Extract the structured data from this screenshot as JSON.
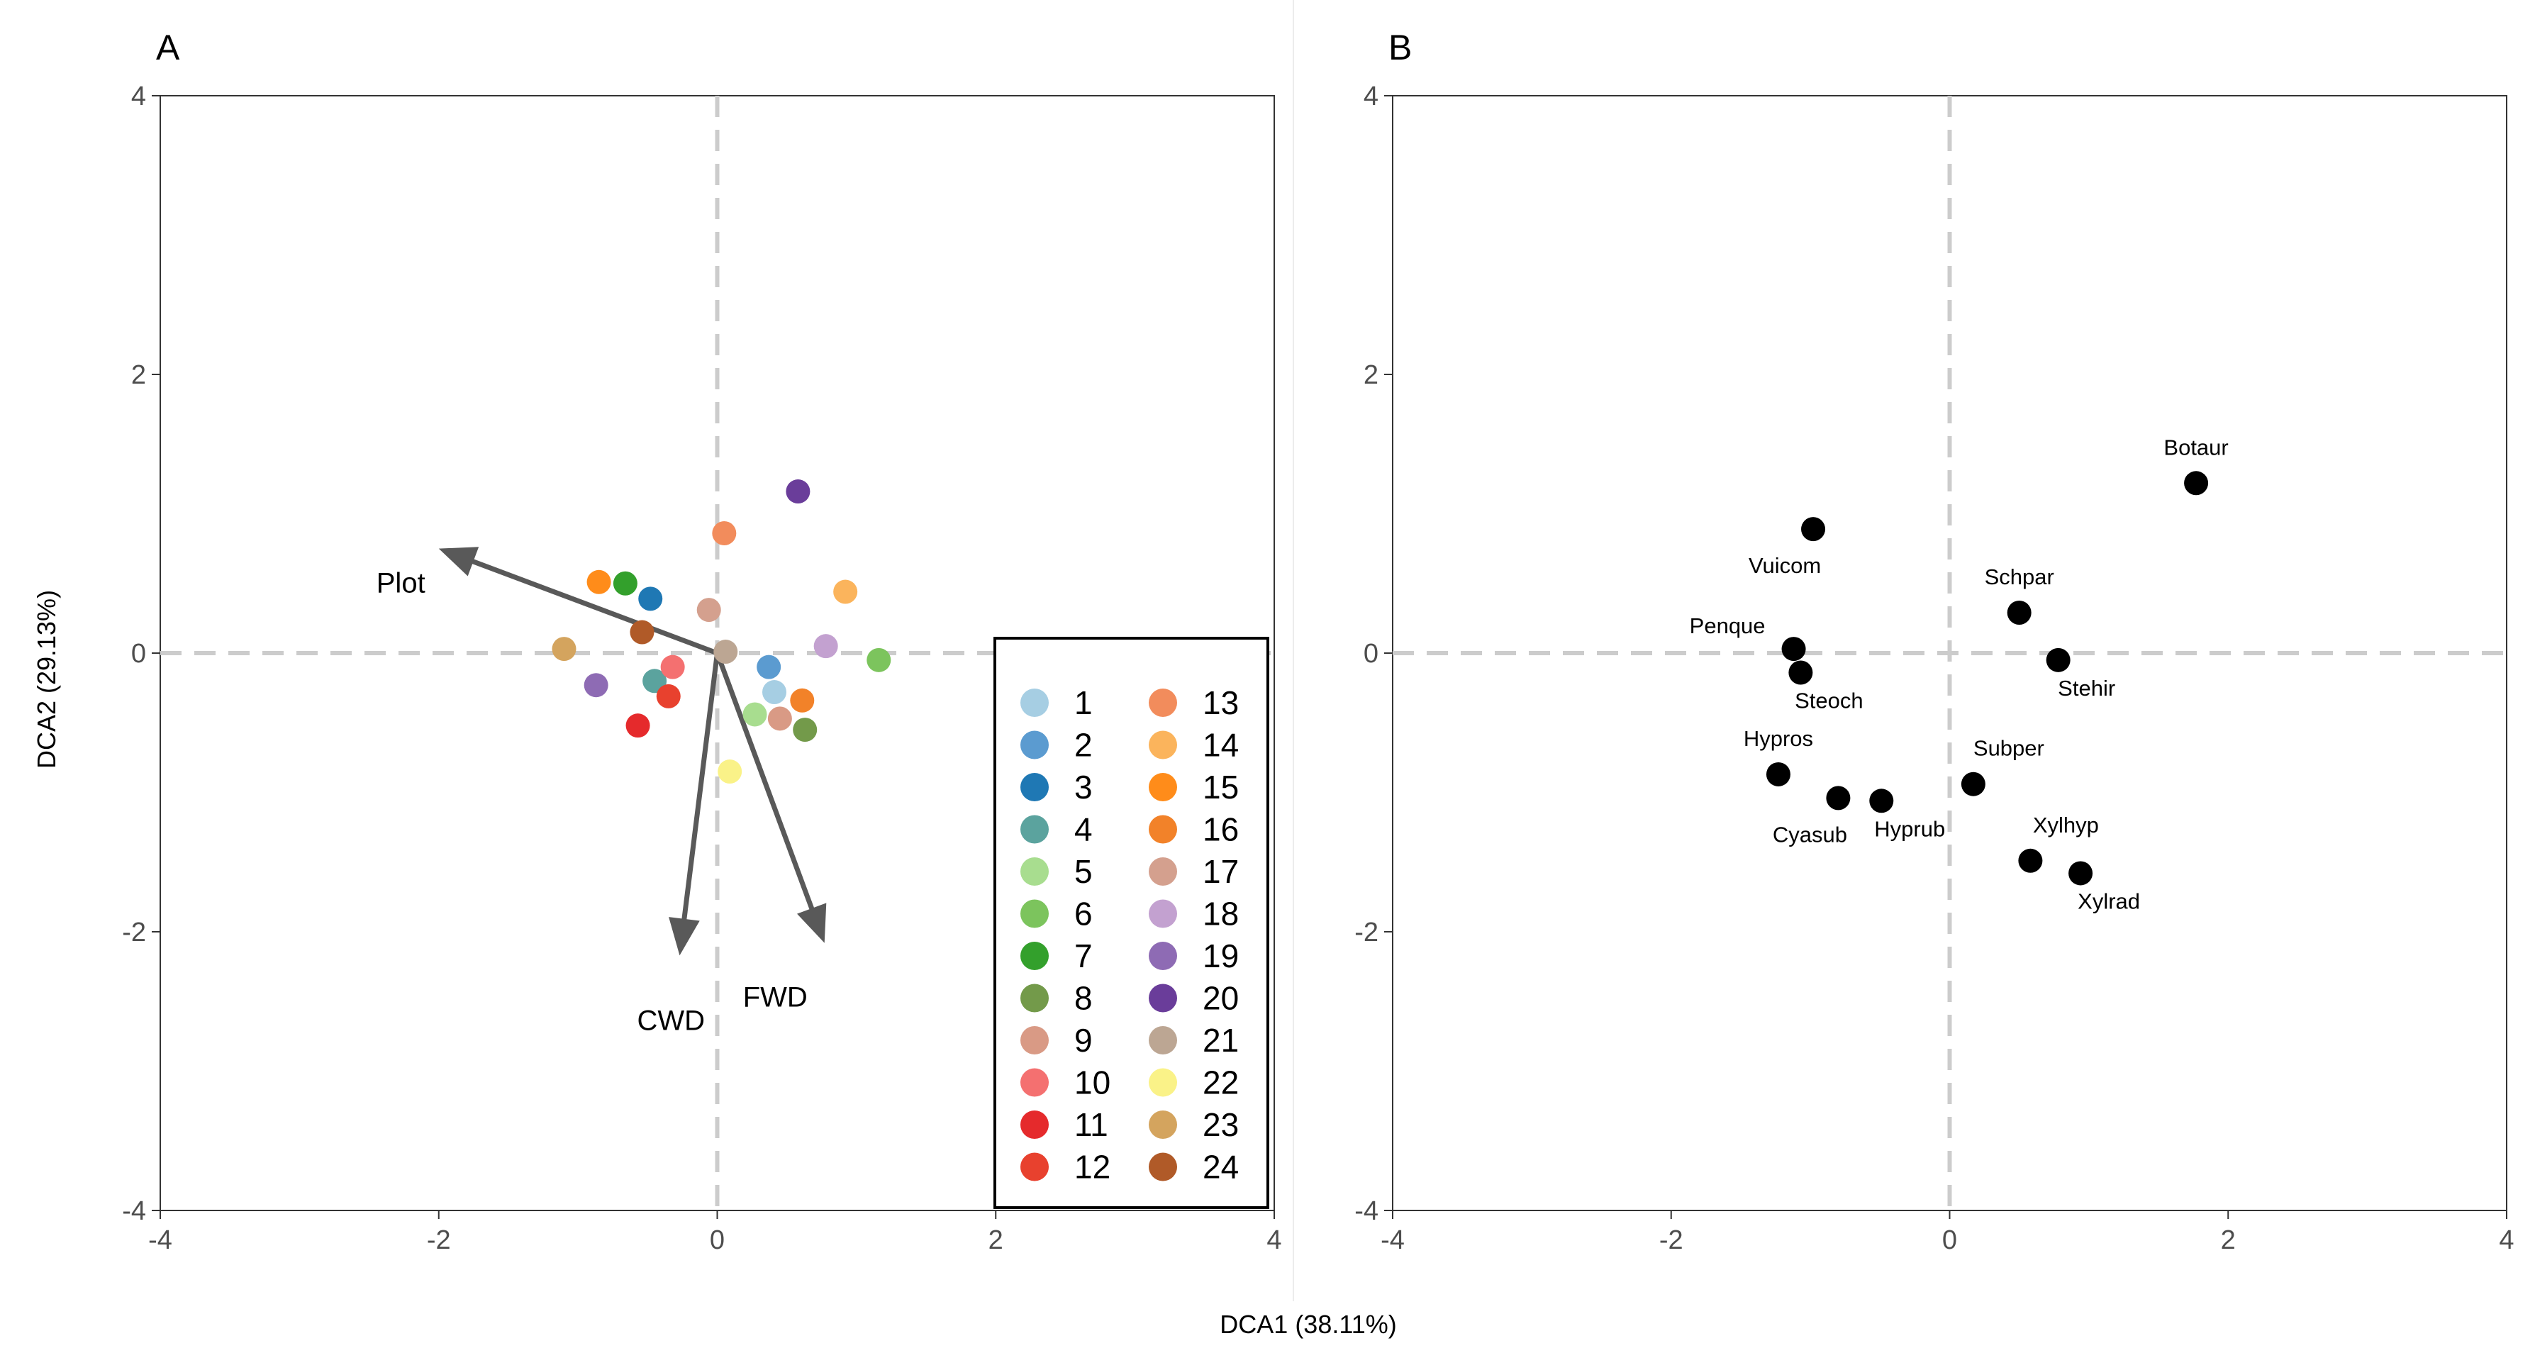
{
  "figure": {
    "xlabel": "DCA1 (38.11%)",
    "ylabel": "DCA2 (29.13%)"
  },
  "chart_data": [
    {
      "panel": "A",
      "type": "scatter",
      "xlim": [
        -4,
        4
      ],
      "ylim": [
        -4,
        4
      ],
      "x_ticks": [
        -4,
        -2,
        0,
        2,
        4
      ],
      "y_ticks": [
        -4,
        -2,
        0,
        2,
        4
      ],
      "x_tick_labels": [
        "-4",
        "-2",
        "0",
        "2",
        "4"
      ],
      "y_tick_labels": [
        "-4",
        "-2",
        "0",
        "2",
        "4"
      ],
      "reference_lines": {
        "x": 0,
        "y": 0,
        "style": "dashed"
      },
      "vectors": [
        {
          "label": "Plot",
          "x": -2.0,
          "y": 0.75
        },
        {
          "label": "CWD",
          "x": -0.27,
          "y": -2.17
        },
        {
          "label": "FWD",
          "x": 0.77,
          "y": -2.08
        }
      ],
      "points": [
        {
          "group": "1",
          "x": 0.41,
          "y": -0.28,
          "color": "#a6cee3"
        },
        {
          "group": "2",
          "x": 0.37,
          "y": -0.1,
          "color": "#5b9bd0"
        },
        {
          "group": "3",
          "x": -0.48,
          "y": 0.39,
          "color": "#1f78b4"
        },
        {
          "group": "4",
          "x": -0.45,
          "y": -0.2,
          "color": "#5ba39e"
        },
        {
          "group": "5",
          "x": 0.27,
          "y": -0.44,
          "color": "#a8dd8f"
        },
        {
          "group": "6",
          "x": 1.16,
          "y": -0.05,
          "color": "#7cc45d"
        },
        {
          "group": "7",
          "x": -0.66,
          "y": 0.5,
          "color": "#33a02c"
        },
        {
          "group": "8",
          "x": 0.63,
          "y": -0.55,
          "color": "#739a4a"
        },
        {
          "group": "9",
          "x": 0.45,
          "y": -0.47,
          "color": "#d99a85"
        },
        {
          "group": "10",
          "x": -0.32,
          "y": -0.1,
          "color": "#f47070"
        },
        {
          "group": "11",
          "x": -0.57,
          "y": -0.52,
          "color": "#e52a2c"
        },
        {
          "group": "12",
          "x": -0.35,
          "y": -0.31,
          "color": "#e8412e"
        },
        {
          "group": "13",
          "x": 0.05,
          "y": 0.86,
          "color": "#f28c5c"
        },
        {
          "group": "14",
          "x": 0.92,
          "y": 0.44,
          "color": "#fbb45c"
        },
        {
          "group": "15",
          "x": -0.85,
          "y": 0.51,
          "color": "#ff8c1a"
        },
        {
          "group": "16",
          "x": 0.61,
          "y": -0.34,
          "color": "#f28229"
        },
        {
          "group": "17",
          "x": -0.06,
          "y": 0.31,
          "color": "#d4a08e"
        },
        {
          "group": "18",
          "x": 0.78,
          "y": 0.05,
          "color": "#c3a1d0"
        },
        {
          "group": "19",
          "x": -0.87,
          "y": -0.23,
          "color": "#8e6bb4"
        },
        {
          "group": "20",
          "x": 0.58,
          "y": 1.16,
          "color": "#6a3d9a"
        },
        {
          "group": "21",
          "x": 0.06,
          "y": 0.01,
          "color": "#bca693"
        },
        {
          "group": "22",
          "x": 0.09,
          "y": -0.85,
          "color": "#faf288"
        },
        {
          "group": "23",
          "x": -1.1,
          "y": 0.03,
          "color": "#d4a45e"
        },
        {
          "group": "24",
          "x": -0.54,
          "y": 0.15,
          "color": "#b05a28"
        }
      ],
      "legend": {
        "position": "bottom-right",
        "entries": [
          {
            "label": "1",
            "color": "#a6cee3"
          },
          {
            "label": "2",
            "color": "#5b9bd0"
          },
          {
            "label": "3",
            "color": "#1f78b4"
          },
          {
            "label": "4",
            "color": "#5ba39e"
          },
          {
            "label": "5",
            "color": "#a8dd8f"
          },
          {
            "label": "6",
            "color": "#7cc45d"
          },
          {
            "label": "7",
            "color": "#33a02c"
          },
          {
            "label": "8",
            "color": "#739a4a"
          },
          {
            "label": "9",
            "color": "#d99a85"
          },
          {
            "label": "10",
            "color": "#f47070"
          },
          {
            "label": "11",
            "color": "#e52a2c"
          },
          {
            "label": "12",
            "color": "#e8412e"
          },
          {
            "label": "13",
            "color": "#f28c5c"
          },
          {
            "label": "14",
            "color": "#fbb45c"
          },
          {
            "label": "15",
            "color": "#ff8c1a"
          },
          {
            "label": "16",
            "color": "#f28229"
          },
          {
            "label": "17",
            "color": "#d4a08e"
          },
          {
            "label": "18",
            "color": "#c3a1d0"
          },
          {
            "label": "19",
            "color": "#8e6bb4"
          },
          {
            "label": "20",
            "color": "#6a3d9a"
          },
          {
            "label": "21",
            "color": "#bca693"
          },
          {
            "label": "22",
            "color": "#faf288"
          },
          {
            "label": "23",
            "color": "#d4a45e"
          },
          {
            "label": "24",
            "color": "#b05a28"
          }
        ]
      }
    },
    {
      "panel": "B",
      "type": "scatter",
      "xlim": [
        -4,
        4
      ],
      "ylim": [
        -4,
        4
      ],
      "x_ticks": [
        -4,
        -2,
        0,
        2,
        4
      ],
      "y_ticks": [
        -4,
        -2,
        0,
        2,
        4
      ],
      "x_tick_labels": [
        "-4",
        "-2",
        "0",
        "2",
        "4"
      ],
      "y_tick_labels": [
        "-4",
        "-2",
        "0",
        "2",
        "4"
      ],
      "reference_lines": {
        "x": 0,
        "y": 0,
        "style": "dashed"
      },
      "point_color": "#000000",
      "points": [
        {
          "label": "Botaur",
          "x": 1.77,
          "y": 1.22,
          "label_side": "above"
        },
        {
          "label": "Vuicom",
          "x": -0.98,
          "y": 0.89,
          "label_side": "below"
        },
        {
          "label": "Schpar",
          "x": 0.5,
          "y": 0.29,
          "label_side": "above"
        },
        {
          "label": "Penque",
          "x": -1.12,
          "y": 0.03,
          "label_side": "above-left"
        },
        {
          "label": "Stehir",
          "x": 0.78,
          "y": -0.05,
          "label_side": "below-right"
        },
        {
          "label": "Steoch",
          "x": -1.07,
          "y": -0.14,
          "label_side": "below-right"
        },
        {
          "label": "Hypros",
          "x": -1.23,
          "y": -0.87,
          "label_side": "above"
        },
        {
          "label": "Cyasub",
          "x": -0.8,
          "y": -1.04,
          "label_side": "below"
        },
        {
          "label": "Hyprub",
          "x": -0.49,
          "y": -1.06,
          "label_side": "below-right"
        },
        {
          "label": "Subper",
          "x": 0.17,
          "y": -0.94,
          "label_side": "above-right"
        },
        {
          "label": "Xylhyp",
          "x": 0.58,
          "y": -1.49,
          "label_side": "above-right"
        },
        {
          "label": "Xylrad",
          "x": 0.94,
          "y": -1.58,
          "label_side": "below-right"
        }
      ]
    }
  ]
}
